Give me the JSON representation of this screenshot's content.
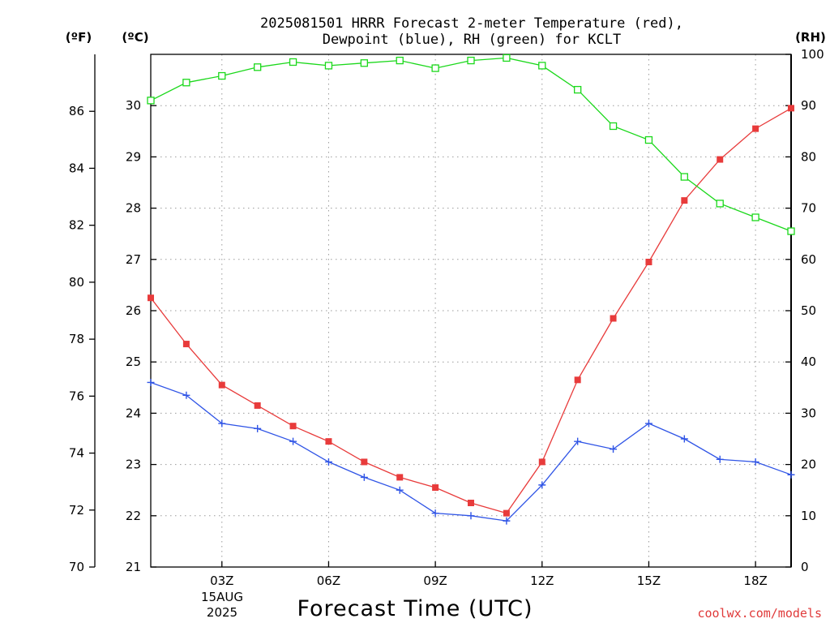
{
  "chart_data": {
    "type": "line",
    "title_line1": "2025081501 HRRR Forecast 2-meter Temperature (red),",
    "title_line2": "Dewpoint (blue), RH (green) for KCLT",
    "xlabel": "Forecast Time (UTC)",
    "credit": "coolwx.com/models",
    "unit_labels": {
      "fahrenheit": "(ºF)",
      "celsius": "(ºC)",
      "rh": "(RH)"
    },
    "x_ticks": [
      "03Z",
      "06Z",
      "09Z",
      "12Z",
      "15Z",
      "18Z"
    ],
    "x_tick_hours": [
      3,
      6,
      9,
      12,
      15,
      18
    ],
    "x_date_label": [
      "15AUG",
      "2025"
    ],
    "x_range": [
      1,
      19
    ],
    "x": [
      1,
      2,
      3,
      4,
      5,
      6,
      7,
      8,
      9,
      10,
      11,
      12,
      13,
      14,
      15,
      16,
      17,
      18,
      19
    ],
    "y_fahrenheit": {
      "range": [
        70,
        88
      ],
      "ticks": [
        70,
        72,
        74,
        76,
        78,
        80,
        82,
        84,
        86
      ]
    },
    "y_celsius": {
      "range": [
        21,
        31
      ],
      "ticks": [
        21,
        22,
        23,
        24,
        25,
        26,
        27,
        28,
        29,
        30
      ]
    },
    "y_rh": {
      "range": [
        0,
        100
      ],
      "ticks": [
        0,
        10,
        20,
        30,
        40,
        50,
        60,
        70,
        80,
        90,
        100
      ]
    },
    "series": [
      {
        "name": "Temperature (red)",
        "axis": "celsius",
        "color": "#e83b3b",
        "marker": "filled-square",
        "values": [
          26.25,
          25.35,
          24.55,
          24.15,
          23.75,
          23.45,
          23.05,
          22.75,
          22.55,
          22.25,
          22.05,
          23.05,
          24.65,
          25.85,
          26.95,
          28.15,
          28.95,
          29.55,
          29.95
        ]
      },
      {
        "name": "Dewpoint (blue)",
        "axis": "celsius",
        "color": "#2f54e6",
        "marker": "plus",
        "values": [
          24.6,
          24.35,
          23.8,
          23.7,
          23.45,
          23.05,
          22.75,
          22.5,
          22.05,
          22.0,
          21.9,
          22.6,
          23.45,
          23.3,
          23.8,
          23.5,
          23.1,
          23.05,
          22.8
        ]
      },
      {
        "name": "RH (green)",
        "axis": "rh",
        "color": "#1bd81b",
        "marker": "open-square",
        "values": [
          91,
          94.5,
          95.8,
          97.5,
          98.5,
          97.8,
          98.3,
          98.8,
          97.3,
          98.8,
          99.3,
          97.8,
          93.1,
          86,
          83.3,
          76.1,
          70.9,
          68.2,
          65.5
        ]
      }
    ],
    "grid": true
  }
}
